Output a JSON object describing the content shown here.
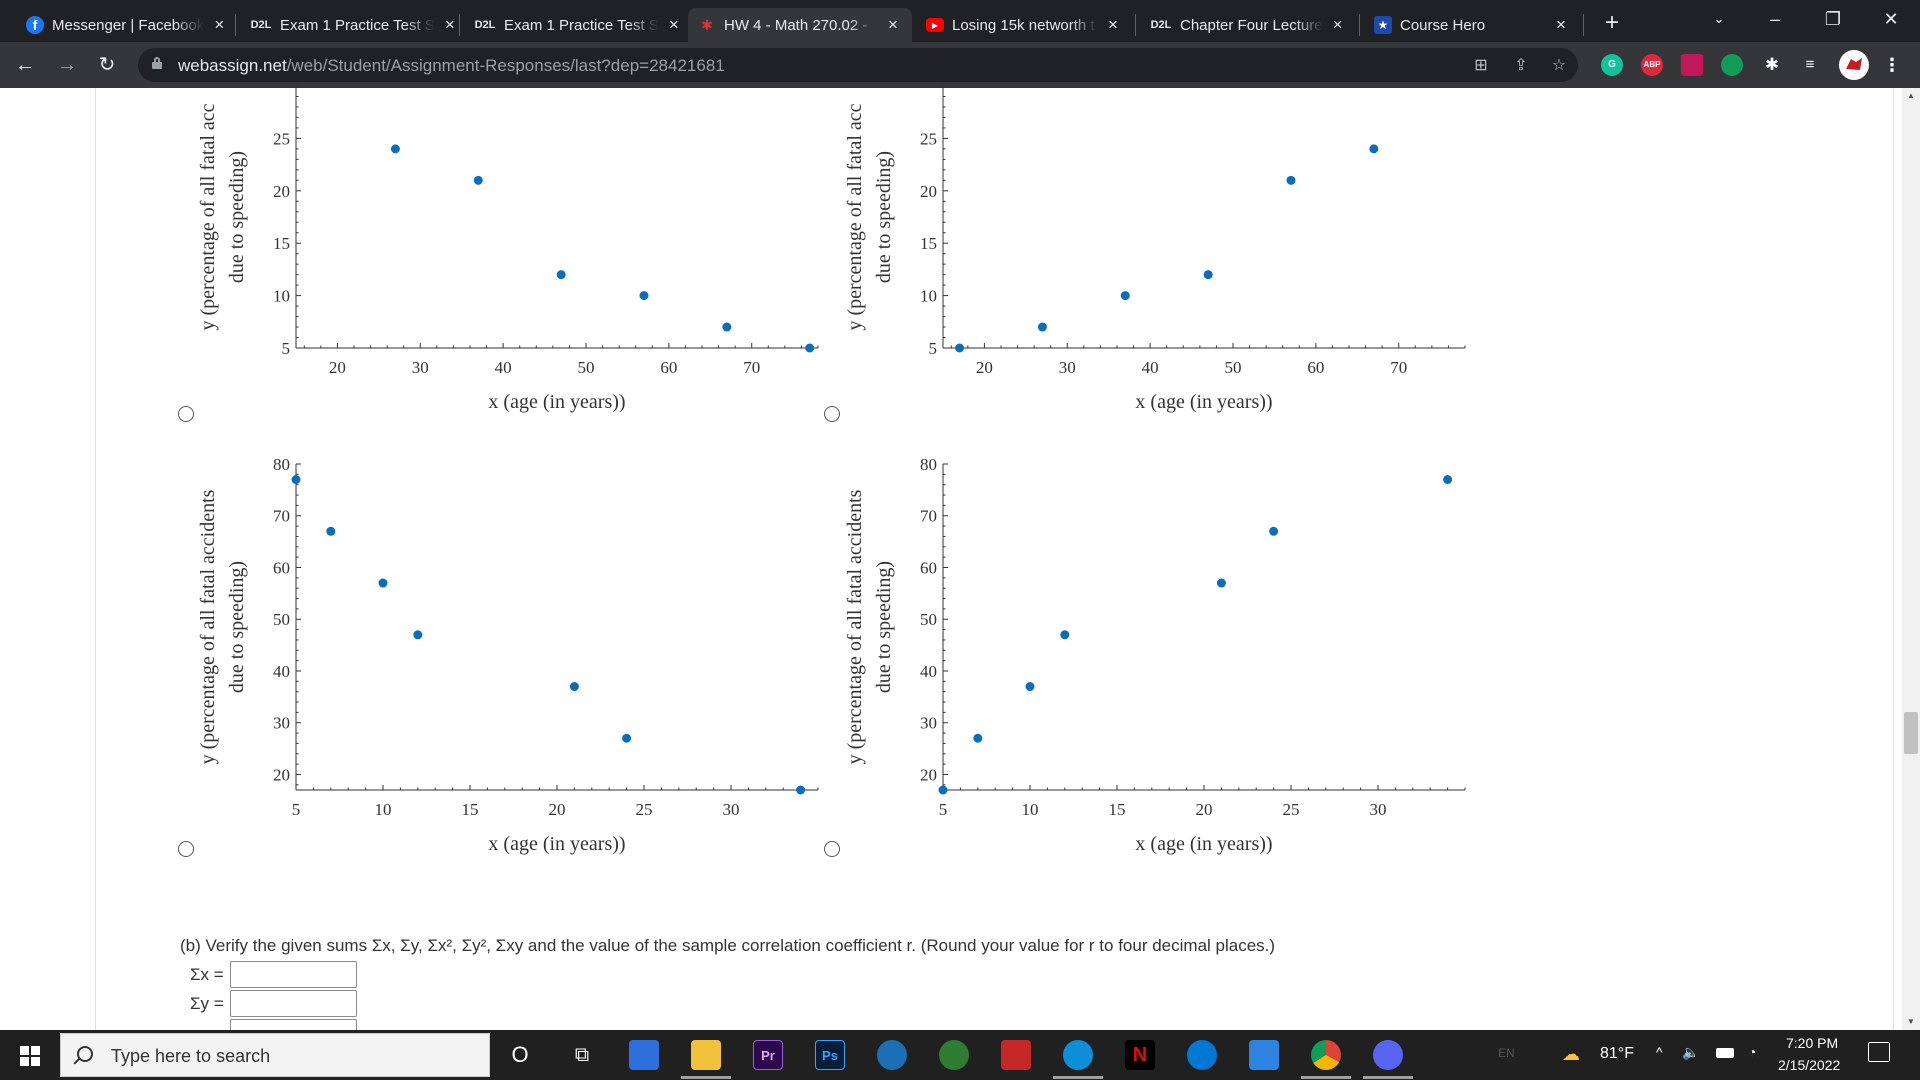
{
  "browser": {
    "tabs": [
      {
        "title": "Messenger | Facebook",
        "favicon": "facebook-icon",
        "active": false
      },
      {
        "title": "Exam 1 Practice Test S",
        "favicon": "d2l-icon",
        "active": false
      },
      {
        "title": "Exam 1 Practice Test S",
        "favicon": "d2l-icon",
        "active": false
      },
      {
        "title": "HW 4 - Math 270.02 -",
        "favicon": "webassign-icon",
        "active": true
      },
      {
        "title": "Losing 15k networth t",
        "favicon": "youtube-icon",
        "active": false
      },
      {
        "title": "Chapter Four Lecture",
        "favicon": "d2l-icon",
        "active": false
      },
      {
        "title": "Course Hero",
        "favicon": "coursehero-icon",
        "active": false
      }
    ],
    "favicon_text": {
      "facebook": "f",
      "d2l": "D2L",
      "youtube": "▶",
      "coursehero": "★",
      "webassign": "✱"
    },
    "new_tab_label": "+",
    "url_host": "webassign.net",
    "url_path": "/web/Student/Assignment-Responses/last?dep=28421681",
    "extensions": [
      "G",
      "ABP"
    ]
  },
  "question": {
    "part_b_text": "(b) Verify the given sums Σx, Σy, Σx², Σy², Σxy and the value of the sample correlation coefficient r. (Round your value for r to four decimal places.)",
    "sum_labels": [
      "Σx =",
      "Σy ="
    ],
    "sum_values": [
      "",
      ""
    ]
  },
  "chart_data": [
    {
      "type": "scatter",
      "xlabel": "x (age (in years))",
      "ylabel": [
        "y (percentage of all fatal acc",
        "due to speeding)"
      ],
      "xlim": [
        15,
        78
      ],
      "ylim": [
        5,
        30
      ],
      "xticks": [
        20,
        30,
        40,
        50,
        60,
        70
      ],
      "yticks": [
        5,
        10,
        15,
        20,
        25
      ],
      "points": [
        [
          27,
          24
        ],
        [
          37,
          21
        ],
        [
          47,
          12
        ],
        [
          57,
          10
        ],
        [
          67,
          7
        ],
        [
          77,
          5
        ]
      ],
      "color": "#0a6ebd"
    },
    {
      "type": "scatter",
      "xlabel": "x (age (in years))",
      "ylabel": [
        "y (percentage of all fatal acc",
        "due to speeding)"
      ],
      "xlim": [
        15,
        78
      ],
      "ylim": [
        5,
        30
      ],
      "xticks": [
        20,
        30,
        40,
        50,
        60,
        70
      ],
      "yticks": [
        5,
        10,
        15,
        20,
        25
      ],
      "points": [
        [
          17,
          5
        ],
        [
          27,
          7
        ],
        [
          37,
          10
        ],
        [
          47,
          12
        ],
        [
          57,
          21
        ],
        [
          67,
          24
        ]
      ],
      "color": "#0a6ebd"
    },
    {
      "type": "scatter",
      "xlabel": "x (age (in years))",
      "ylabel": [
        "y (percentage of all fatal accidents",
        "due to speeding)"
      ],
      "xlim": [
        5,
        35
      ],
      "ylim": [
        17,
        80
      ],
      "xticks": [
        5,
        10,
        15,
        20,
        25,
        30
      ],
      "yticks": [
        20,
        30,
        40,
        50,
        60,
        70,
        80
      ],
      "points": [
        [
          5,
          77
        ],
        [
          7,
          67
        ],
        [
          10,
          57
        ],
        [
          12,
          47
        ],
        [
          21,
          37
        ],
        [
          24,
          27
        ],
        [
          34,
          17
        ]
      ],
      "color": "#0a6ebd"
    },
    {
      "type": "scatter",
      "xlabel": "x (age (in years))",
      "ylabel": [
        "y (percentage of all fatal accidents",
        "due to speeding)"
      ],
      "xlim": [
        5,
        35
      ],
      "ylim": [
        17,
        80
      ],
      "xticks": [
        5,
        10,
        15,
        20,
        25,
        30
      ],
      "yticks": [
        20,
        30,
        40,
        50,
        60,
        70,
        80
      ],
      "points": [
        [
          5,
          17
        ],
        [
          7,
          27
        ],
        [
          10,
          37
        ],
        [
          12,
          47
        ],
        [
          21,
          57
        ],
        [
          24,
          67
        ],
        [
          34,
          77
        ]
      ],
      "color": "#0a6ebd"
    }
  ],
  "taskbar": {
    "search_placeholder": "Type here to search",
    "apps": [
      {
        "name": "cortana-icon",
        "label": "O"
      },
      {
        "name": "task-view-icon",
        "label": "⧉"
      },
      {
        "name": "microsoft-store-icon",
        "label": ""
      },
      {
        "name": "file-explorer-icon",
        "label": ""
      },
      {
        "name": "premiere-pro-icon",
        "label": "Pr"
      },
      {
        "name": "photoshop-icon",
        "label": "Ps"
      },
      {
        "name": "stocks-icon",
        "label": ""
      },
      {
        "name": "browser-app-icon",
        "label": ""
      },
      {
        "name": "gaming-app-icon",
        "label": ""
      },
      {
        "name": "edge-icon",
        "label": ""
      },
      {
        "name": "netflix-icon",
        "label": "N"
      },
      {
        "name": "skype-icon",
        "label": ""
      },
      {
        "name": "mail-icon",
        "label": ""
      },
      {
        "name": "chrome-icon",
        "label": ""
      },
      {
        "name": "discord-icon",
        "label": ""
      }
    ],
    "language": "EN",
    "temperature": "81°F",
    "time": "7:20 PM",
    "date": "2/15/2022"
  },
  "colors": {
    "tab_bg": "#202124",
    "active_tab": "#35363a",
    "point": "#0a6ebd",
    "taskbar": "#202020"
  }
}
